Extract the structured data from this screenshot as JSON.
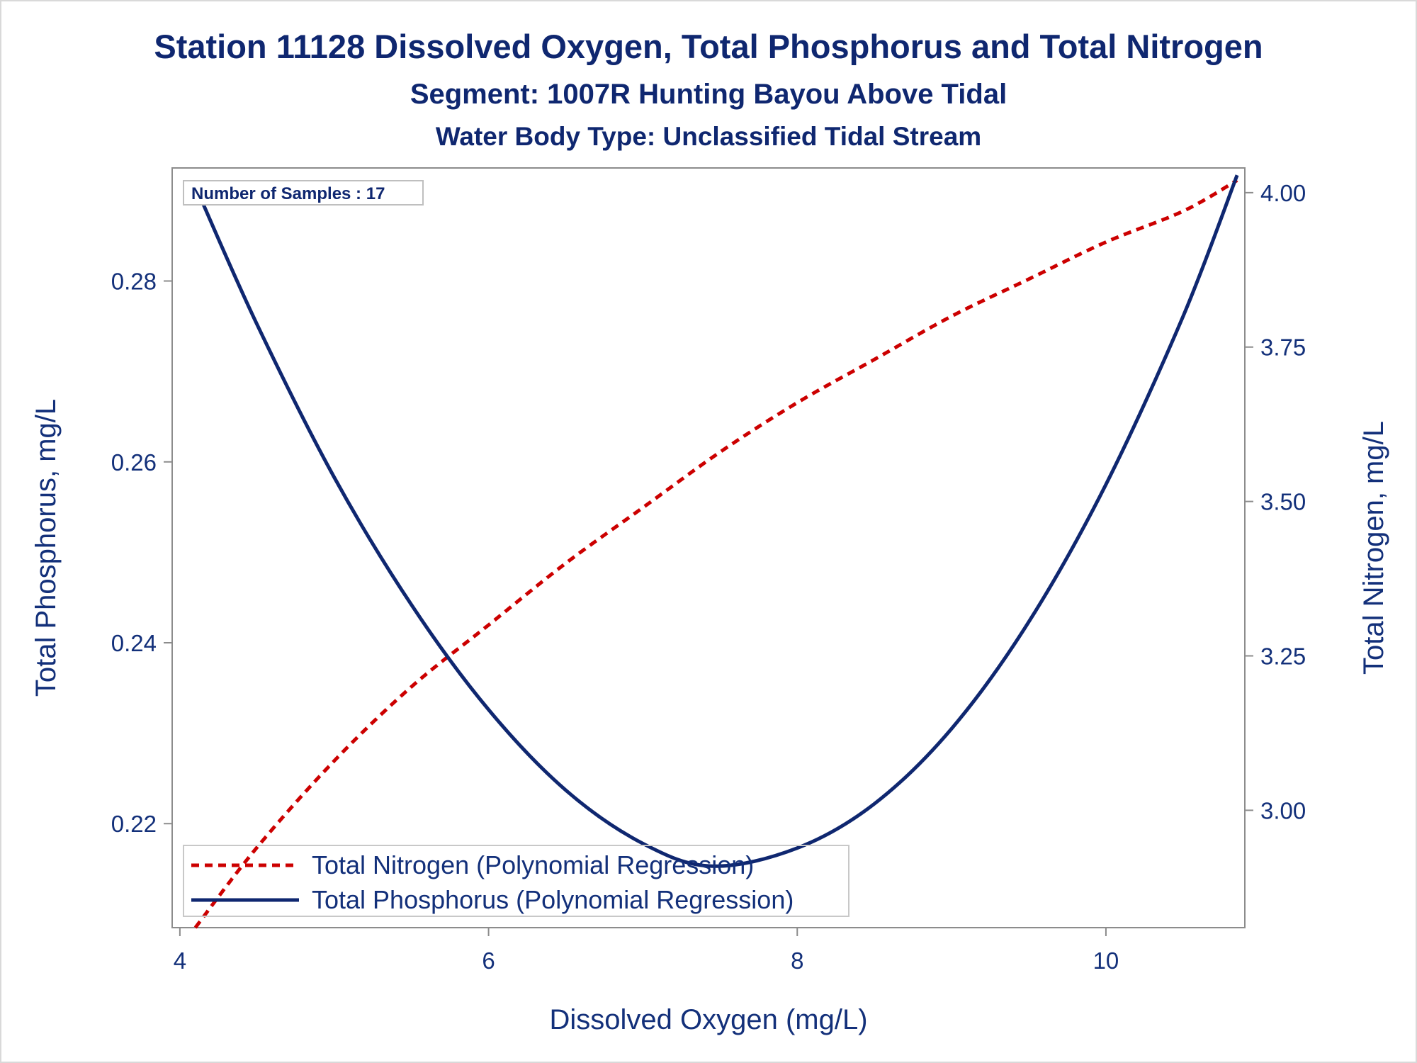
{
  "chart_data": {
    "type": "line",
    "title": "Station 11128  Dissolved Oxygen, Total Phosphorus and Total Nitrogen",
    "subtitle": "Segment: 1007R  Hunting Bayou Above Tidal",
    "subtitle2": "Water Body Type: Unclassified Tidal Stream",
    "xlabel": "Dissolved Oxygen (mg/L)",
    "ylabel_left": "Total Phosphorus, mg/L",
    "ylabel_right": "Total Nitrogen, mg/L",
    "xlim": [
      3.95,
      10.9
    ],
    "ylim_left": [
      0.2085,
      0.2925
    ],
    "ylim_right": [
      2.81,
      4.04
    ],
    "x_ticks": [
      {
        "value": 4,
        "label": "4"
      },
      {
        "value": 6,
        "label": "6"
      },
      {
        "value": 8,
        "label": "8"
      },
      {
        "value": 10,
        "label": "10"
      }
    ],
    "y_left_ticks": [
      {
        "value": 0.22,
        "label": "0.22"
      },
      {
        "value": 0.24,
        "label": "0.24"
      },
      {
        "value": 0.26,
        "label": "0.26"
      },
      {
        "value": 0.28,
        "label": "0.28"
      }
    ],
    "y_right_ticks": [
      {
        "value": 3.0,
        "label": "3.00"
      },
      {
        "value": 3.25,
        "label": "3.25"
      },
      {
        "value": 3.5,
        "label": "3.50"
      },
      {
        "value": 3.75,
        "label": "3.75"
      },
      {
        "value": 4.0,
        "label": "4.00"
      }
    ],
    "annotation": "Number of Samples : 17",
    "legend_position": "bottom-left",
    "grid": false,
    "series": [
      {
        "name": "Total Nitrogen (Polynomial Regression)",
        "axis": "right",
        "style": "dashed",
        "color": "#cc0000",
        "x": [
          4.1,
          4.5,
          5.0,
          5.5,
          6.0,
          6.5,
          7.0,
          7.5,
          8.0,
          8.5,
          9.0,
          9.5,
          10.0,
          10.5,
          10.85
        ],
        "y": [
          2.81,
          2.94,
          3.08,
          3.2,
          3.3,
          3.4,
          3.49,
          3.58,
          3.66,
          3.73,
          3.8,
          3.86,
          3.92,
          3.97,
          4.02
        ]
      },
      {
        "name": "Total Phosphorus (Polynomial Regression)",
        "axis": "left",
        "style": "solid",
        "color": "#0f2770",
        "x": [
          4.1,
          4.5,
          5.0,
          5.5,
          6.0,
          6.5,
          7.0,
          7.45,
          8.0,
          8.5,
          9.0,
          9.5,
          10.0,
          10.5,
          10.85
        ],
        "y": [
          0.2905,
          0.2752,
          0.2583,
          0.2442,
          0.2326,
          0.2237,
          0.2178,
          0.2153,
          0.2173,
          0.2222,
          0.2305,
          0.2423,
          0.2575,
          0.2761,
          0.2917
        ]
      }
    ]
  }
}
